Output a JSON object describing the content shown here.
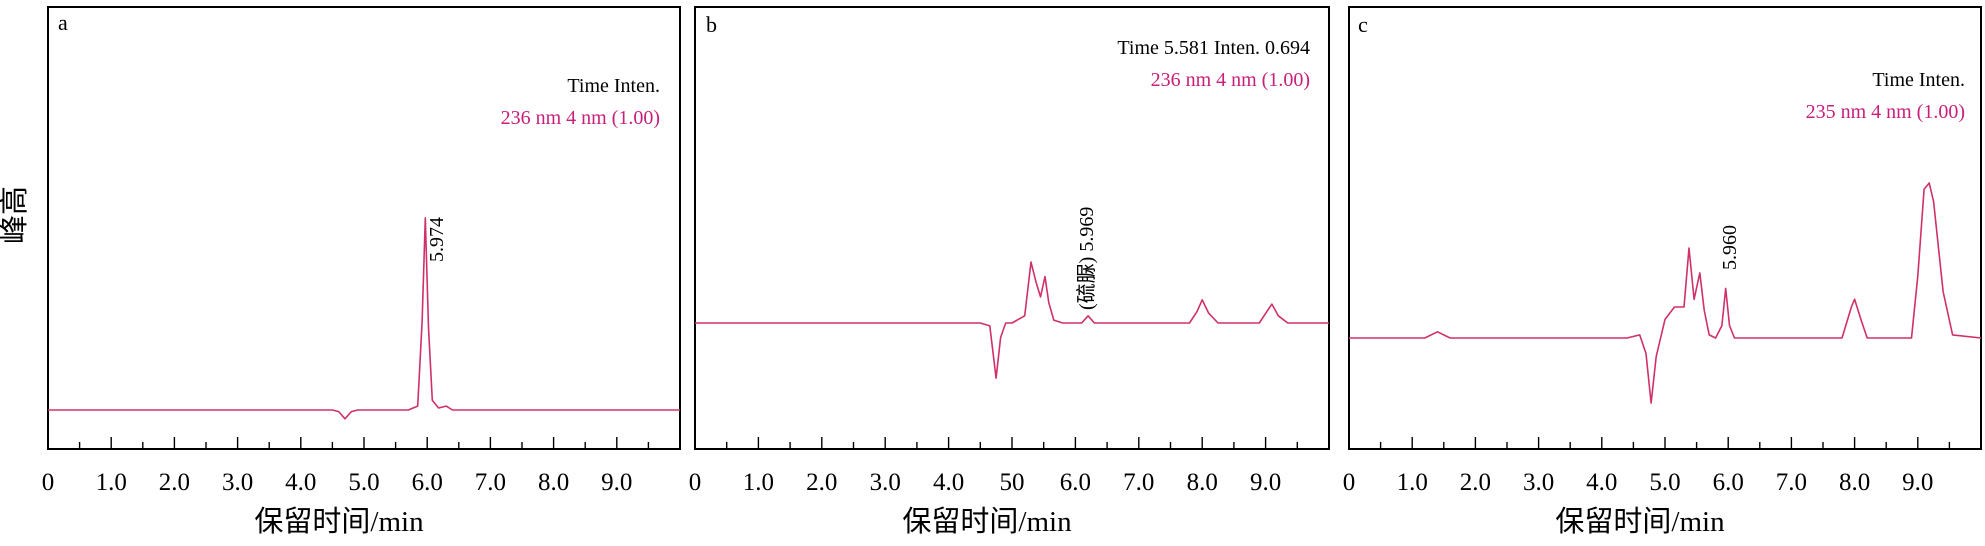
{
  "figure": {
    "ylabel": "峰高"
  },
  "colors": {
    "trace": "#d0306a",
    "legend_pink": "#c8207a"
  },
  "chart_data": [
    {
      "panel": "a",
      "type": "line",
      "xlabel": "保留时间/min",
      "xlim": [
        0,
        10
      ],
      "xticks": [
        "0",
        "1.0",
        "2.0",
        "3.0",
        "4.0",
        "5.0",
        "6.0",
        "7.0",
        "8.0",
        "9.0"
      ],
      "legend": {
        "line1": "Time  Inten.",
        "line2": "236 nm 4 nm (1.00)"
      },
      "peaks": [
        {
          "x": 5.974,
          "label": "5.974"
        }
      ],
      "series": [
        {
          "x": [
            0.0,
            4.5,
            4.6,
            4.7,
            4.8,
            4.9,
            5.7,
            5.85,
            5.92,
            5.97,
            6.02,
            6.08,
            6.18,
            6.3,
            6.4,
            10.0
          ],
          "y": [
            0.0,
            0.0,
            -0.008,
            -0.045,
            -0.008,
            0.0,
            0.0,
            0.02,
            0.45,
            0.98,
            0.42,
            0.05,
            0.01,
            0.02,
            0.0,
            0.0
          ]
        }
      ]
    },
    {
      "panel": "b",
      "type": "line",
      "xlabel": "保留时间/min",
      "xlim": [
        0,
        10
      ],
      "xticks": [
        "0",
        "1.0",
        "2.0",
        "3.0",
        "4.0",
        "50",
        "6.0",
        "7.0",
        "8.0",
        "9.0"
      ],
      "legend": {
        "line1": "Time 5.581  Inten.   0.694",
        "line2": "236 nm 4 nm (1.00)"
      },
      "peaks": [
        {
          "x": 5.969,
          "label": "(硫脲) 5.969"
        }
      ],
      "series": [
        {
          "x": [
            0.0,
            4.5,
            4.65,
            4.75,
            4.82,
            4.9,
            5.0,
            5.2,
            5.3,
            5.38,
            5.45,
            5.52,
            5.58,
            5.66,
            5.8,
            6.1,
            6.2,
            6.3,
            7.8,
            7.92,
            8.0,
            8.1,
            8.25,
            8.9,
            9.02,
            9.1,
            9.2,
            9.35,
            10.0
          ],
          "y": [
            0.0,
            0.0,
            -0.02,
            -0.38,
            -0.1,
            0.0,
            0.0,
            0.05,
            0.42,
            0.28,
            0.18,
            0.32,
            0.14,
            0.02,
            0.0,
            0.0,
            0.05,
            0.0,
            0.0,
            0.08,
            0.16,
            0.07,
            0.0,
            0.0,
            0.08,
            0.13,
            0.05,
            0.0,
            0.0
          ]
        }
      ]
    },
    {
      "panel": "c",
      "type": "line",
      "xlabel": "保留时间/min",
      "xlim": [
        0,
        10
      ],
      "xticks": [
        "0",
        "1.0",
        "2.0",
        "3.0",
        "4.0",
        "5.0",
        "6.0",
        "7.0",
        "8.0",
        "9.0"
      ],
      "legend": {
        "line1": "Time  Inten.",
        "line2": "235 nm 4 nm (1.00)"
      },
      "peaks": [
        {
          "x": 5.96,
          "label": "5.960"
        }
      ],
      "series": [
        {
          "x": [
            0.0,
            1.2,
            1.4,
            1.6,
            4.4,
            4.6,
            4.7,
            4.78,
            4.86,
            5.0,
            5.15,
            5.3,
            5.38,
            5.46,
            5.55,
            5.62,
            5.7,
            5.8,
            5.9,
            5.96,
            6.02,
            6.1,
            6.3,
            7.8,
            7.95,
            8.0,
            8.1,
            8.2,
            8.9,
            9.0,
            9.1,
            9.18,
            9.25,
            9.4,
            9.55,
            10.0
          ],
          "y": [
            0.0,
            0.0,
            0.04,
            0.0,
            0.0,
            0.02,
            -0.1,
            -0.42,
            -0.12,
            0.12,
            0.2,
            0.2,
            0.58,
            0.25,
            0.42,
            0.18,
            0.02,
            0.0,
            0.08,
            0.32,
            0.08,
            0.0,
            0.0,
            0.0,
            0.2,
            0.25,
            0.12,
            0.0,
            0.0,
            0.4,
            0.96,
            1.0,
            0.88,
            0.3,
            0.02,
            0.0
          ]
        }
      ]
    }
  ]
}
